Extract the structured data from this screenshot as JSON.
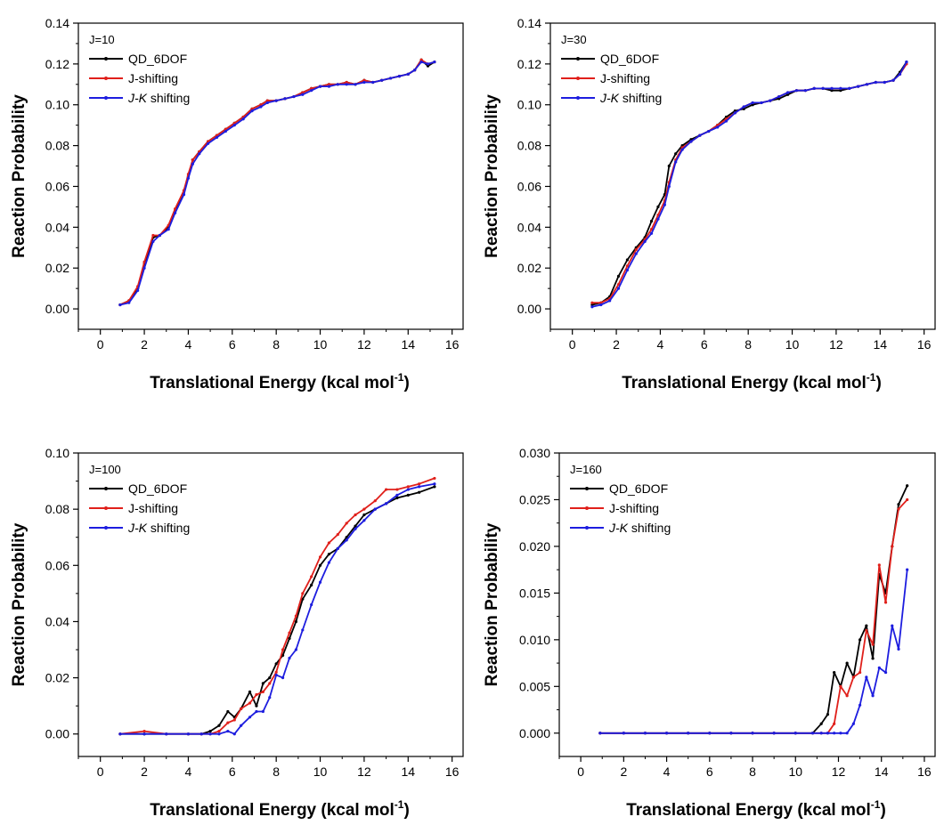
{
  "chart_data": [
    {
      "type": "line",
      "annotation": "J=10",
      "xlabel": "Translational Energy (kcal mol",
      "xlabel_sup": "-1",
      "xlabel_end": ")",
      "ylabel": "Reaction Probability",
      "xlim": [
        -1,
        16.5
      ],
      "ylim": [
        -0.01,
        0.14
      ],
      "xticks": [
        0,
        2,
        4,
        6,
        8,
        10,
        12,
        14,
        16
      ],
      "yticks": [
        0.0,
        0.02,
        0.04,
        0.06,
        0.08,
        0.1,
        0.12,
        0.14
      ],
      "ytick_labels": [
        "0.00",
        "0.02",
        "0.04",
        "0.06",
        "0.08",
        "0.10",
        "0.12",
        "0.14"
      ],
      "legend_position": "top-left",
      "series": [
        {
          "name": "QD_6DOF",
          "color": "#000000",
          "x": [
            0.9,
            1.3,
            1.7,
            2.0,
            2.4,
            2.7,
            3.1,
            3.4,
            3.8,
            4.0,
            4.2,
            4.5,
            4.9,
            5.3,
            5.7,
            6.1,
            6.5,
            6.9,
            7.3,
            7.6,
            8.0,
            8.4,
            8.8,
            9.2,
            9.6,
            10.0,
            10.4,
            10.8,
            11.2,
            11.6,
            12.0,
            12.4,
            12.8,
            13.2,
            13.6,
            14.0,
            14.3,
            14.6,
            14.9,
            15.2
          ],
          "y": [
            0.002,
            0.004,
            0.01,
            0.022,
            0.035,
            0.036,
            0.04,
            0.048,
            0.058,
            0.065,
            0.073,
            0.077,
            0.082,
            0.085,
            0.088,
            0.091,
            0.094,
            0.098,
            0.1,
            0.102,
            0.102,
            0.103,
            0.104,
            0.106,
            0.108,
            0.109,
            0.11,
            0.11,
            0.111,
            0.11,
            0.112,
            0.111,
            0.112,
            0.113,
            0.114,
            0.115,
            0.117,
            0.122,
            0.119,
            0.121
          ]
        },
        {
          "name": "J-shifting",
          "color": "#e0201b",
          "x": [
            0.9,
            1.3,
            1.7,
            2.0,
            2.4,
            2.7,
            3.1,
            3.4,
            3.8,
            4.0,
            4.2,
            4.5,
            4.9,
            5.3,
            5.7,
            6.1,
            6.5,
            6.9,
            7.3,
            7.6,
            8.0,
            8.4,
            8.8,
            9.2,
            9.6,
            10.0,
            10.4,
            10.8,
            11.2,
            11.6,
            12.0,
            12.4,
            12.8,
            13.2,
            13.6,
            14.0,
            14.3,
            14.6,
            14.9,
            15.2
          ],
          "y": [
            0.002,
            0.004,
            0.011,
            0.023,
            0.036,
            0.036,
            0.041,
            0.049,
            0.058,
            0.066,
            0.073,
            0.077,
            0.082,
            0.085,
            0.088,
            0.091,
            0.094,
            0.098,
            0.1,
            0.102,
            0.102,
            0.103,
            0.104,
            0.106,
            0.108,
            0.109,
            0.11,
            0.11,
            0.111,
            0.11,
            0.112,
            0.111,
            0.112,
            0.113,
            0.114,
            0.115,
            0.117,
            0.122,
            0.12,
            0.121
          ]
        },
        {
          "name": "J-K shifting",
          "color": "#1d1ddf",
          "x": [
            0.9,
            1.3,
            1.7,
            2.0,
            2.4,
            2.7,
            3.1,
            3.4,
            3.8,
            4.0,
            4.2,
            4.5,
            4.9,
            5.3,
            5.7,
            6.1,
            6.5,
            6.9,
            7.3,
            7.6,
            8.0,
            8.4,
            8.8,
            9.2,
            9.6,
            10.0,
            10.4,
            10.8,
            11.2,
            11.6,
            12.0,
            12.4,
            12.8,
            13.2,
            13.6,
            14.0,
            14.3,
            14.6,
            14.9,
            15.2
          ],
          "y": [
            0.002,
            0.003,
            0.009,
            0.02,
            0.033,
            0.036,
            0.039,
            0.047,
            0.056,
            0.064,
            0.071,
            0.076,
            0.081,
            0.084,
            0.087,
            0.09,
            0.093,
            0.097,
            0.099,
            0.101,
            0.102,
            0.103,
            0.104,
            0.105,
            0.107,
            0.109,
            0.109,
            0.11,
            0.11,
            0.11,
            0.111,
            0.111,
            0.112,
            0.113,
            0.114,
            0.115,
            0.117,
            0.121,
            0.12,
            0.121
          ]
        }
      ]
    },
    {
      "type": "line",
      "annotation": "J=30",
      "xlabel": "Translational Energy (kcal mol",
      "xlabel_sup": "-1",
      "xlabel_end": ")",
      "ylabel": "Reaction Probability",
      "xlim": [
        -1,
        16.5
      ],
      "ylim": [
        -0.01,
        0.14
      ],
      "xticks": [
        0,
        2,
        4,
        6,
        8,
        10,
        12,
        14,
        16
      ],
      "yticks": [
        0.0,
        0.02,
        0.04,
        0.06,
        0.08,
        0.1,
        0.12,
        0.14
      ],
      "ytick_labels": [
        "0.00",
        "0.02",
        "0.04",
        "0.06",
        "0.08",
        "0.10",
        "0.12",
        "0.14"
      ],
      "legend_position": "top-left",
      "series": [
        {
          "name": "QD_6DOF",
          "color": "#000000",
          "x": [
            0.9,
            1.3,
            1.7,
            2.1,
            2.5,
            2.9,
            3.3,
            3.6,
            3.9,
            4.2,
            4.4,
            4.7,
            5.0,
            5.4,
            5.8,
            6.2,
            6.6,
            7.0,
            7.4,
            7.8,
            8.2,
            8.6,
            9.0,
            9.4,
            9.8,
            10.2,
            10.6,
            11.0,
            11.4,
            11.8,
            12.2,
            12.6,
            13.0,
            13.4,
            13.8,
            14.2,
            14.6,
            14.9,
            15.2
          ],
          "y": [
            0.002,
            0.003,
            0.006,
            0.016,
            0.024,
            0.03,
            0.035,
            0.043,
            0.05,
            0.056,
            0.07,
            0.076,
            0.08,
            0.083,
            0.085,
            0.087,
            0.09,
            0.094,
            0.097,
            0.098,
            0.1,
            0.101,
            0.102,
            0.103,
            0.105,
            0.107,
            0.107,
            0.108,
            0.108,
            0.107,
            0.107,
            0.108,
            0.109,
            0.11,
            0.111,
            0.111,
            0.112,
            0.116,
            0.121
          ]
        },
        {
          "name": "J-shifting",
          "color": "#e0201b",
          "x": [
            0.9,
            1.3,
            1.7,
            2.1,
            2.5,
            2.9,
            3.3,
            3.6,
            3.9,
            4.2,
            4.4,
            4.7,
            5.0,
            5.4,
            5.8,
            6.2,
            6.6,
            7.0,
            7.4,
            7.8,
            8.2,
            8.6,
            9.0,
            9.4,
            9.8,
            10.2,
            10.6,
            11.0,
            11.4,
            11.8,
            12.2,
            12.6,
            13.0,
            13.4,
            13.8,
            14.2,
            14.6,
            14.9,
            15.2
          ],
          "y": [
            0.003,
            0.003,
            0.005,
            0.012,
            0.021,
            0.029,
            0.034,
            0.039,
            0.046,
            0.053,
            0.062,
            0.073,
            0.079,
            0.082,
            0.085,
            0.087,
            0.09,
            0.093,
            0.096,
            0.099,
            0.101,
            0.101,
            0.102,
            0.104,
            0.106,
            0.107,
            0.107,
            0.108,
            0.108,
            0.108,
            0.108,
            0.108,
            0.109,
            0.11,
            0.111,
            0.111,
            0.112,
            0.115,
            0.12
          ]
        },
        {
          "name": "J-K shifting",
          "color": "#1d1ddf",
          "x": [
            0.9,
            1.3,
            1.7,
            2.1,
            2.5,
            2.9,
            3.3,
            3.6,
            3.9,
            4.2,
            4.4,
            4.7,
            5.0,
            5.4,
            5.8,
            6.2,
            6.6,
            7.0,
            7.4,
            7.8,
            8.2,
            8.6,
            9.0,
            9.4,
            9.8,
            10.2,
            10.6,
            11.0,
            11.4,
            11.8,
            12.2,
            12.6,
            13.0,
            13.4,
            13.8,
            14.2,
            14.6,
            14.9,
            15.2
          ],
          "y": [
            0.001,
            0.002,
            0.004,
            0.01,
            0.019,
            0.027,
            0.033,
            0.037,
            0.044,
            0.051,
            0.06,
            0.072,
            0.078,
            0.082,
            0.085,
            0.087,
            0.089,
            0.092,
            0.096,
            0.099,
            0.101,
            0.101,
            0.102,
            0.104,
            0.106,
            0.107,
            0.107,
            0.108,
            0.108,
            0.108,
            0.108,
            0.108,
            0.109,
            0.11,
            0.111,
            0.111,
            0.112,
            0.115,
            0.121
          ]
        }
      ]
    },
    {
      "type": "line",
      "annotation": "J=100",
      "xlabel": "Translational Energy (kcal mol",
      "xlabel_sup": "-1",
      "xlabel_end": ")",
      "ylabel": "Reaction Probability",
      "xlim": [
        -1,
        16.5
      ],
      "ylim": [
        -0.008,
        0.1
      ],
      "xticks": [
        0,
        2,
        4,
        6,
        8,
        10,
        12,
        14,
        16
      ],
      "yticks": [
        0.0,
        0.02,
        0.04,
        0.06,
        0.08,
        0.1
      ],
      "ytick_labels": [
        "0.00",
        "0.02",
        "0.04",
        "0.06",
        "0.08",
        "0.10"
      ],
      "legend_position": "top-left",
      "series": [
        {
          "name": "QD_6DOF",
          "color": "#000000",
          "x": [
            0.9,
            2.0,
            3.0,
            4.0,
            4.6,
            5.0,
            5.4,
            5.8,
            6.1,
            6.4,
            6.8,
            7.1,
            7.4,
            7.7,
            8.0,
            8.3,
            8.6,
            8.9,
            9.2,
            9.6,
            10.0,
            10.4,
            10.8,
            11.2,
            11.6,
            12.0,
            12.5,
            13.0,
            13.5,
            14.0,
            14.5,
            15.2
          ],
          "y": [
            0.0,
            0.0,
            0.0,
            0.0,
            0.0,
            0.001,
            0.003,
            0.008,
            0.006,
            0.009,
            0.015,
            0.01,
            0.018,
            0.02,
            0.025,
            0.028,
            0.034,
            0.04,
            0.048,
            0.053,
            0.06,
            0.064,
            0.066,
            0.07,
            0.074,
            0.078,
            0.08,
            0.082,
            0.084,
            0.085,
            0.086,
            0.088
          ]
        },
        {
          "name": "J-shifting",
          "color": "#e0201b",
          "x": [
            0.9,
            2.0,
            3.0,
            4.0,
            4.6,
            5.0,
            5.4,
            5.8,
            6.1,
            6.4,
            6.8,
            7.1,
            7.4,
            7.7,
            8.0,
            8.3,
            8.6,
            8.9,
            9.2,
            9.6,
            10.0,
            10.4,
            10.8,
            11.2,
            11.6,
            12.0,
            12.5,
            13.0,
            13.5,
            14.0,
            14.5,
            15.2
          ],
          "y": [
            0.0,
            0.001,
            0.0,
            0.0,
            0.0,
            0.0,
            0.001,
            0.004,
            0.005,
            0.009,
            0.011,
            0.014,
            0.015,
            0.018,
            0.022,
            0.03,
            0.036,
            0.042,
            0.05,
            0.056,
            0.063,
            0.068,
            0.071,
            0.075,
            0.078,
            0.08,
            0.083,
            0.087,
            0.087,
            0.088,
            0.089,
            0.091
          ]
        },
        {
          "name": "J-K shifting",
          "color": "#1d1ddf",
          "x": [
            0.9,
            2.0,
            3.0,
            4.0,
            4.6,
            5.0,
            5.4,
            5.8,
            6.1,
            6.4,
            6.8,
            7.1,
            7.4,
            7.7,
            8.0,
            8.3,
            8.6,
            8.9,
            9.2,
            9.6,
            10.0,
            10.4,
            10.8,
            11.2,
            11.6,
            12.0,
            12.5,
            13.0,
            13.5,
            14.0,
            14.5,
            15.2
          ],
          "y": [
            0.0,
            0.0,
            0.0,
            0.0,
            0.0,
            0.0,
            0.0,
            0.001,
            0.0,
            0.003,
            0.006,
            0.008,
            0.008,
            0.013,
            0.021,
            0.02,
            0.027,
            0.03,
            0.037,
            0.046,
            0.054,
            0.061,
            0.066,
            0.069,
            0.073,
            0.076,
            0.08,
            0.082,
            0.085,
            0.087,
            0.088,
            0.089
          ]
        }
      ]
    },
    {
      "type": "line",
      "annotation": "J=160",
      "xlabel": "Translational Energy (kcal mol",
      "xlabel_sup": "-1",
      "xlabel_end": ")",
      "ylabel": "Reaction Probability",
      "xlim": [
        -1,
        16.5
      ],
      "ylim": [
        -0.0025,
        0.03
      ],
      "xticks": [
        0,
        2,
        4,
        6,
        8,
        10,
        12,
        14,
        16
      ],
      "yticks": [
        0.0,
        0.005,
        0.01,
        0.015,
        0.02,
        0.025,
        0.03
      ],
      "ytick_labels": [
        "0.000",
        "0.005",
        "0.010",
        "0.015",
        "0.020",
        "0.025",
        "0.030"
      ],
      "legend_position": "top-left",
      "series": [
        {
          "name": "QD_6DOF",
          "color": "#000000",
          "x": [
            0.9,
            2.0,
            3.0,
            4.0,
            5.0,
            6.0,
            7.0,
            8.0,
            9.0,
            10.0,
            10.8,
            11.2,
            11.5,
            11.8,
            12.1,
            12.4,
            12.7,
            13.0,
            13.3,
            13.6,
            13.9,
            14.2,
            14.5,
            14.8,
            15.2
          ],
          "y": [
            0.0,
            0.0,
            0.0,
            0.0,
            0.0,
            0.0,
            0.0,
            0.0,
            0.0,
            0.0,
            0.0,
            0.001,
            0.002,
            0.0065,
            0.005,
            0.0075,
            0.006,
            0.01,
            0.0115,
            0.008,
            0.017,
            0.015,
            0.02,
            0.0245,
            0.0265
          ]
        },
        {
          "name": "J-shifting",
          "color": "#e0201b",
          "x": [
            0.9,
            2.0,
            3.0,
            4.0,
            5.0,
            6.0,
            7.0,
            8.0,
            9.0,
            10.0,
            10.8,
            11.2,
            11.5,
            11.8,
            12.1,
            12.4,
            12.7,
            13.0,
            13.3,
            13.6,
            13.9,
            14.2,
            14.5,
            14.8,
            15.2
          ],
          "y": [
            0.0,
            0.0,
            0.0,
            0.0,
            0.0,
            0.0,
            0.0,
            0.0,
            0.0,
            0.0,
            0.0,
            0.0,
            0.0,
            0.001,
            0.005,
            0.004,
            0.006,
            0.0065,
            0.011,
            0.0095,
            0.018,
            0.014,
            0.02,
            0.024,
            0.025
          ]
        },
        {
          "name": "J-K shifting",
          "color": "#1d1ddf",
          "x": [
            0.9,
            2.0,
            3.0,
            4.0,
            5.0,
            6.0,
            7.0,
            8.0,
            9.0,
            10.0,
            10.8,
            11.2,
            11.5,
            11.8,
            12.1,
            12.4,
            12.7,
            13.0,
            13.3,
            13.6,
            13.9,
            14.2,
            14.5,
            14.8,
            15.2
          ],
          "y": [
            0.0,
            0.0,
            0.0,
            0.0,
            0.0,
            0.0,
            0.0,
            0.0,
            0.0,
            0.0,
            0.0,
            0.0,
            0.0,
            0.0,
            0.0,
            0.0,
            0.001,
            0.003,
            0.006,
            0.004,
            0.007,
            0.0065,
            0.0115,
            0.009,
            0.0175
          ]
        }
      ]
    }
  ]
}
